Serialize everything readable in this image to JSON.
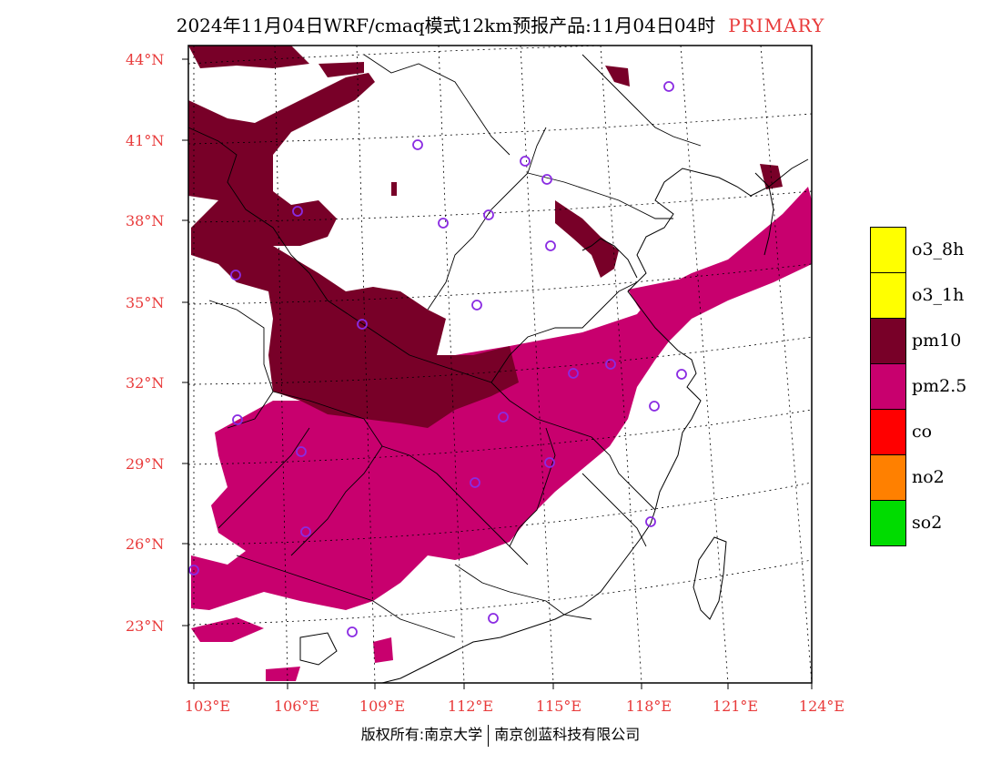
{
  "title": {
    "text": "2024年11月04日WRF/cmaq模式12km预报产品:11月04日04时",
    "tag": "PRIMARY"
  },
  "lat_labels": [
    "44°N",
    "41°N",
    "38°N",
    "35°N",
    "32°N",
    "29°N",
    "26°N",
    "23°N"
  ],
  "lon_labels": [
    "103°E",
    "106°E",
    "109°E",
    "112°E",
    "115°E",
    "118°E",
    "121°E",
    "124°E"
  ],
  "legend": [
    {
      "label": "o3_8h",
      "color": "#ffff00"
    },
    {
      "label": "o3_1h",
      "color": "#ffff00"
    },
    {
      "label": "pm10",
      "color": "#780028"
    },
    {
      "label": "pm2.5",
      "color": "#c8006e"
    },
    {
      "label": "co",
      "color": "#ff0000"
    },
    {
      "label": "no2",
      "color": "#ff8000"
    },
    {
      "label": "so2",
      "color": "#00dc00"
    }
  ],
  "copyright": {
    "left": "版权所有:南京大学",
    "right": "南京创蓝科技有限公司"
  }
}
